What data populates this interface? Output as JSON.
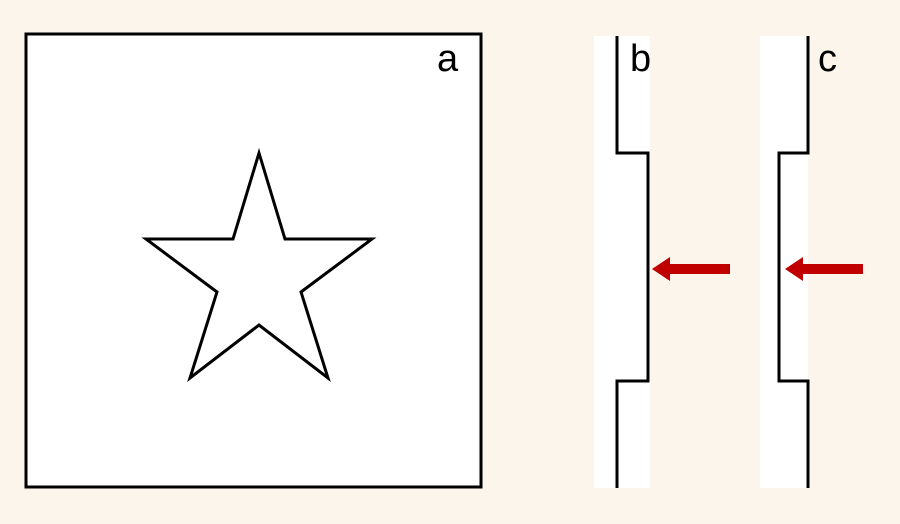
{
  "panels": {
    "a": {
      "label": "a",
      "shape": "star"
    },
    "b": {
      "label": "b",
      "content": "stepped-edge-profile",
      "marker": "left-arrow"
    },
    "c": {
      "label": "c",
      "content": "stepped-edge-profile",
      "marker": "left-arrow"
    }
  },
  "colors": {
    "background": "#fbf5ec",
    "panel_fill": "#ffffff",
    "stroke": "#000000",
    "arrow": "#c00000"
  }
}
